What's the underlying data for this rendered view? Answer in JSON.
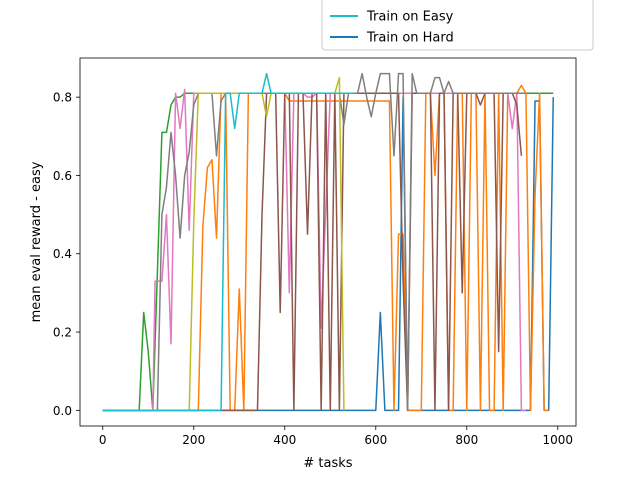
{
  "chart_data": {
    "type": "line",
    "title": "",
    "xlabel": "# tasks",
    "ylabel": "mean eval reward - easy",
    "xlim": [
      -50,
      1040
    ],
    "ylim": [
      -0.04,
      0.9
    ],
    "xticks": [
      0,
      200,
      400,
      600,
      800,
      1000
    ],
    "xtick_labels": [
      "0",
      "200",
      "400",
      "600",
      "800",
      "1000"
    ],
    "yticks": [
      0.0,
      0.2,
      0.4,
      0.6,
      0.8
    ],
    "ytick_labels": [
      "0.0",
      "0.2",
      "0.4",
      "0.6",
      "0.8"
    ],
    "grid": false,
    "legend_position": "top-right (partially clipped above plot)",
    "legend": [
      {
        "label": "Train on Easy",
        "color": "#17becf"
      },
      {
        "label": "Train on Hard",
        "color": "#1f77b4"
      }
    ],
    "series": [
      {
        "name": "Train on Hard",
        "color": "#1f77b4",
        "x": [
          0,
          590,
          600,
          610,
          620,
          650,
          660,
          670,
          940,
          950,
          960,
          970,
          980,
          990
        ],
        "y": [
          0,
          0,
          0,
          0.25,
          0,
          0,
          0.8,
          0,
          0,
          0.79,
          0.79,
          0,
          0,
          0.8
        ]
      },
      {
        "name": "",
        "color": "#2ca02c",
        "x": [
          0,
          80,
          90,
          100,
          110,
          120,
          130,
          140,
          150,
          160,
          170,
          180,
          200,
          990
        ],
        "y": [
          0,
          0,
          0.25,
          0.15,
          0,
          0.35,
          0.71,
          0.71,
          0.78,
          0.8,
          0.8,
          0.81,
          0.81,
          0.81
        ]
      },
      {
        "name": "",
        "color": "#ff7f0e",
        "x": [
          0,
          210,
          220,
          230,
          240,
          250,
          260,
          270,
          280,
          290,
          300,
          310,
          320,
          400,
          410,
          420,
          630,
          640,
          650,
          660,
          670,
          700,
          710,
          720,
          730,
          740,
          750,
          760,
          770,
          780,
          790,
          800,
          810,
          820,
          830,
          840,
          850,
          860,
          870,
          880,
          890,
          900,
          910,
          920,
          930,
          940,
          950,
          960,
          970,
          980
        ],
        "y": [
          0,
          0,
          0.47,
          0.62,
          0.64,
          0.44,
          0.81,
          0.81,
          0,
          0,
          0.31,
          0,
          0.81,
          0.81,
          0.79,
          0.79,
          0.79,
          0,
          0.45,
          0.45,
          0,
          0,
          0.81,
          0.81,
          0.6,
          0.81,
          0.81,
          0,
          0,
          0.81,
          0.81,
          0,
          0.81,
          0.81,
          0,
          0.81,
          0,
          0,
          0.81,
          0,
          0.81,
          0.81,
          0.81,
          0.83,
          0.81,
          0,
          0.55,
          0.81,
          0,
          0
        ]
      },
      {
        "name": "",
        "color": "#e377c2",
        "x": [
          0,
          110,
          115,
          130,
          140,
          150,
          160,
          170,
          180,
          190,
          200,
          210,
          220,
          230,
          300,
          310,
          320,
          330,
          340,
          350,
          360,
          370,
          380,
          390,
          400,
          410,
          420,
          430,
          440,
          450,
          460,
          470,
          480,
          500,
          510,
          520,
          530,
          540,
          550,
          700,
          720,
          730,
          740,
          750,
          760,
          770,
          780,
          790,
          800,
          810,
          820,
          830,
          840,
          850,
          860,
          870,
          880,
          890,
          900,
          910,
          920,
          930
        ],
        "y": [
          0,
          0,
          0.33,
          0.33,
          0.5,
          0.17,
          0.81,
          0.72,
          0.82,
          0.46,
          0.81,
          0.81,
          0.81,
          0.81,
          0.81,
          0.81,
          0.81,
          0.81,
          0.81,
          0.81,
          0.81,
          0.81,
          0.81,
          0.81,
          0.81,
          0.3,
          0.81,
          0.81,
          0.81,
          0.8,
          0.8,
          0.81,
          0.21,
          0.81,
          0.81,
          0.81,
          0.81,
          0.81,
          0.81,
          0.81,
          0.81,
          0.81,
          0.81,
          0.81,
          0.81,
          0.81,
          0.81,
          0.81,
          0.81,
          0.81,
          0.81,
          0.81,
          0.81,
          0.81,
          0.81,
          0.81,
          0.81,
          0.81,
          0.72,
          0.81,
          0,
          0
        ]
      },
      {
        "name": "",
        "color": "#8c564b",
        "x": [
          0,
          340,
          350,
          360,
          380,
          390,
          400,
          410,
          420,
          430,
          440,
          450,
          460,
          470,
          480,
          490,
          500,
          510,
          520,
          530,
          540,
          550,
          560,
          570,
          580,
          590,
          600,
          610,
          620,
          630,
          640,
          650,
          660,
          670,
          680,
          690,
          700,
          710,
          720,
          730,
          740,
          750,
          760,
          770,
          780,
          790,
          800,
          810,
          820,
          830,
          840,
          850,
          860,
          870,
          880,
          890,
          900,
          910,
          920
        ],
        "y": [
          0,
          0,
          0.5,
          0.81,
          0.81,
          0.25,
          0.81,
          0.81,
          0,
          0.81,
          0.81,
          0.45,
          0.81,
          0.81,
          0,
          0.81,
          0,
          0.81,
          0,
          0.81,
          0.81,
          0.81,
          0.81,
          0.81,
          0.81,
          0.81,
          0.81,
          0.81,
          0.81,
          0.81,
          0.81,
          0.81,
          0.33,
          0,
          0.81,
          0.81,
          0.81,
          0.81,
          0.81,
          0,
          0.81,
          0.81,
          0,
          0.81,
          0.81,
          0.3,
          0.81,
          0.81,
          0.81,
          0.78,
          0.81,
          0.81,
          0.81,
          0.15,
          0.81,
          0.81,
          0.81,
          0.78,
          0.65
        ]
      },
      {
        "name": "",
        "color": "#7f7f7f",
        "x": [
          0,
          120,
          130,
          140,
          150,
          160,
          170,
          180,
          190,
          200,
          210,
          220,
          230,
          240,
          250,
          260,
          270,
          280,
          290,
          300,
          310,
          320,
          330,
          340,
          350,
          360,
          370,
          380,
          390,
          400,
          410,
          420,
          430,
          440,
          450,
          460,
          470,
          480,
          490,
          500,
          510,
          520,
          530,
          540,
          550,
          560,
          570,
          580,
          590,
          600,
          610,
          620,
          630,
          640,
          650,
          660,
          670,
          680,
          690,
          700,
          710,
          720,
          730,
          740,
          750,
          760,
          770,
          780,
          790,
          800,
          810,
          820,
          830,
          840,
          850,
          860,
          870,
          880,
          890,
          900,
          910,
          920,
          930
        ],
        "y": [
          0,
          0,
          0.5,
          0.57,
          0.71,
          0.6,
          0.44,
          0.6,
          0.66,
          0.78,
          0.81,
          0.81,
          0.81,
          0.81,
          0.65,
          0.79,
          0.81,
          0.81,
          0.81,
          0.81,
          0.81,
          0.81,
          0.81,
          0.81,
          0.81,
          0.81,
          0.81,
          0.81,
          0.81,
          0.81,
          0.81,
          0.81,
          0.81,
          0.81,
          0.81,
          0.81,
          0.81,
          0.81,
          0.81,
          0.81,
          0.81,
          0.81,
          0.73,
          0.81,
          0.81,
          0.81,
          0.86,
          0.8,
          0.75,
          0.81,
          0.86,
          0.86,
          0.86,
          0.65,
          0.86,
          0.86,
          0,
          0.86,
          0.81,
          0.81,
          0.81,
          0.81,
          0.85,
          0.85,
          0.81,
          0.84,
          0.81,
          0.81,
          0.81,
          0.81,
          0.81,
          0.81,
          0.81,
          0.81,
          0.81,
          0.81,
          0.81,
          0.81,
          0.81,
          0.81,
          0.81,
          0.81,
          0.81
        ]
      },
      {
        "name": "",
        "color": "#bcbd22",
        "x": [
          0,
          190,
          200,
          210,
          220,
          230,
          240,
          250,
          260,
          270,
          280,
          290,
          300,
          310,
          320,
          330,
          340,
          350,
          360,
          370,
          380,
          390,
          400,
          410,
          420,
          430,
          440,
          450,
          460,
          470,
          480,
          490,
          500,
          510,
          520,
          530
        ],
        "y": [
          0,
          0,
          0.48,
          0.81,
          0.81,
          0.81,
          0.81,
          0.81,
          0.81,
          0.81,
          0.81,
          0.81,
          0.81,
          0.81,
          0.81,
          0.81,
          0.81,
          0.81,
          0.75,
          0.81,
          0.81,
          0.81,
          0.81,
          0.81,
          0.81,
          0.81,
          0.81,
          0.81,
          0.81,
          0.81,
          0.81,
          0.81,
          0.81,
          0.81,
          0.85,
          0
        ]
      },
      {
        "name": "Train on Easy",
        "color": "#17becf",
        "x": [
          0,
          260,
          270,
          280,
          290,
          300,
          310,
          320,
          330,
          340,
          350,
          360,
          370,
          380,
          390,
          400,
          410,
          420,
          430,
          440,
          450,
          460,
          470,
          480,
          490,
          500,
          510,
          520,
          530,
          540,
          550
        ],
        "y": [
          0,
          0,
          0.81,
          0.81,
          0.72,
          0.81,
          0.81,
          0.81,
          0.81,
          0.81,
          0.81,
          0.86,
          0.81,
          0.81,
          0.81,
          0.81,
          0.81,
          0.81,
          0.81,
          0.81,
          0.81,
          0.81,
          0.81,
          0.81,
          0.81,
          0.81,
          0.81,
          0.81,
          0.81,
          0.81,
          0.81
        ]
      }
    ]
  }
}
